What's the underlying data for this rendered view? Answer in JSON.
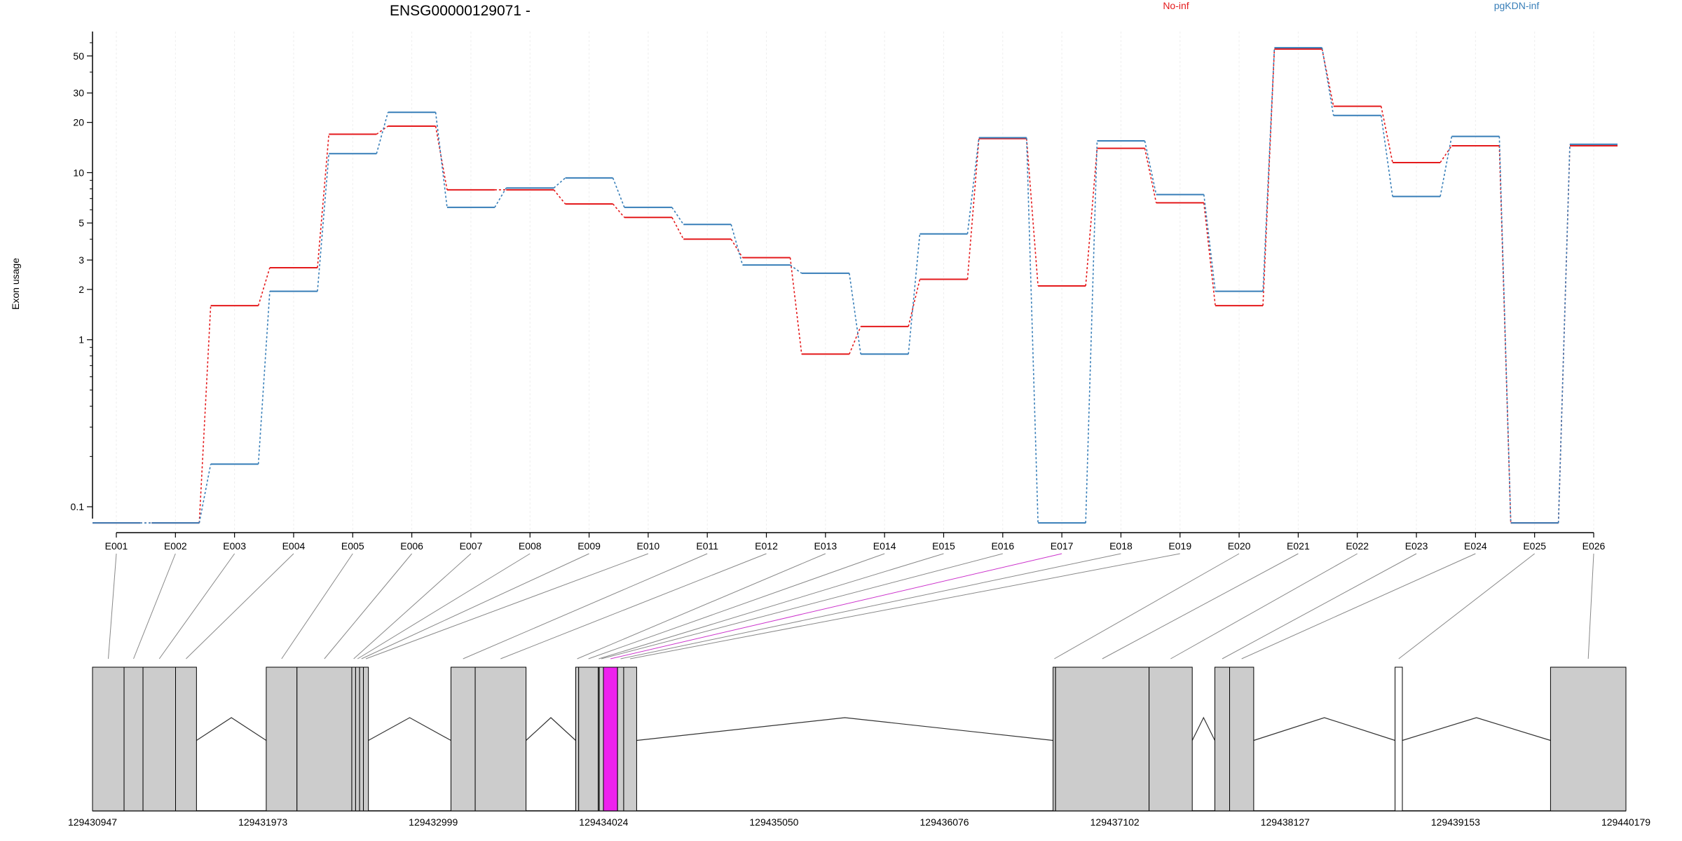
{
  "chart_data": {
    "type": "line",
    "title": "ENSG00000129071 -",
    "ylabel": "Exon usage",
    "xlabel": "",
    "y_scale": "log",
    "ylim": [
      0.07,
      70
    ],
    "y_ticks": [
      {
        "value": 0.1,
        "label": "0.1"
      },
      {
        "value": 1,
        "label": "1"
      },
      {
        "value": 2,
        "label": "2"
      },
      {
        "value": 3,
        "label": "3"
      },
      {
        "value": 5,
        "label": "5"
      },
      {
        "value": 10,
        "label": "10"
      },
      {
        "value": 20,
        "label": "20"
      },
      {
        "value": 30,
        "label": "30"
      },
      {
        "value": 50,
        "label": "50"
      }
    ],
    "categories": [
      "E001",
      "E002",
      "E003",
      "E004",
      "E005",
      "E006",
      "E007",
      "E008",
      "E009",
      "E010",
      "E011",
      "E012",
      "E013",
      "E014",
      "E015",
      "E016",
      "E017",
      "E018",
      "E019",
      "E020",
      "E021",
      "E022",
      "E023",
      "E024",
      "E025",
      "E026"
    ],
    "series": [
      {
        "name": "No-inf",
        "color": "#e41a1c",
        "values": [
          0.08,
          0.08,
          1.6,
          2.7,
          17,
          19,
          7.9,
          7.9,
          6.5,
          5.4,
          4.0,
          3.1,
          0.82,
          1.2,
          2.3,
          16,
          2.1,
          14,
          6.6,
          1.6,
          55,
          25,
          11.5,
          14.5,
          0.08,
          14.5
        ]
      },
      {
        "name": "pgKDN-inf",
        "color": "#377eb8",
        "values": [
          0.08,
          0.08,
          0.18,
          1.95,
          13,
          23,
          6.2,
          8.1,
          9.3,
          6.2,
          4.9,
          2.8,
          2.5,
          0.82,
          4.3,
          16.2,
          0.08,
          15.5,
          7.4,
          1.95,
          56,
          22,
          7.2,
          16.5,
          0.08,
          14.8
        ]
      }
    ],
    "legend": {
      "placement": "top",
      "entries": [
        "No-inf",
        "pgKDN-inf"
      ]
    },
    "grid": true
  },
  "gene_model": {
    "coordinates": [
      "129430947",
      "129431973",
      "129432999",
      "129434024",
      "129435050",
      "129436076",
      "129437102",
      "129438127",
      "129439153",
      "129440179"
    ],
    "coord_range": [
      129430947,
      129440179
    ],
    "highlight_color": "#ee22ee",
    "highlighted_exon": "E017",
    "exons": [
      {
        "id": "E001",
        "start": 129430947,
        "end": 129431137
      },
      {
        "id": "E002",
        "start": 129431137,
        "end": 129431251
      },
      {
        "id": "E003",
        "start": 129431251,
        "end": 129431447
      },
      {
        "id": "E004",
        "start": 129431447,
        "end": 129431573
      },
      {
        "id": "E005",
        "start": 129431993,
        "end": 129432178
      },
      {
        "id": "E006",
        "start": 129432178,
        "end": 129432508
      },
      {
        "id": "E007",
        "start": 129432508,
        "end": 129432531
      },
      {
        "id": "E008",
        "start": 129432531,
        "end": 129432555
      },
      {
        "id": "E009",
        "start": 129432555,
        "end": 129432578
      },
      {
        "id": "E010",
        "start": 129432578,
        "end": 129432608
      },
      {
        "id": "E011",
        "start": 129433105,
        "end": 129433251
      },
      {
        "id": "E012",
        "start": 129433251,
        "end": 129433557
      },
      {
        "id": "E013",
        "start": 129433856,
        "end": 129433874
      },
      {
        "id": "E014",
        "start": 129433874,
        "end": 129433992
      },
      {
        "id": "E015",
        "start": 129433992,
        "end": 129433998
      },
      {
        "id": "E016",
        "start": 129433998,
        "end": 129434023
      },
      {
        "id": "E017",
        "start": 129434023,
        "end": 129434108
      },
      {
        "id": "E018",
        "start": 129434108,
        "end": 129434145
      },
      {
        "id": "E019",
        "start": 129434145,
        "end": 129434223
      },
      {
        "id": "E020",
        "start": 129436730,
        "end": 129436745
      },
      {
        "id": "E021",
        "start": 129436745,
        "end": 129437308
      },
      {
        "id": "E022",
        "start": 129437308,
        "end": 129437568
      },
      {
        "id": "E023",
        "start": 129437704,
        "end": 129437793
      },
      {
        "id": "E024",
        "start": 129437793,
        "end": 129437938
      },
      {
        "id": "E025",
        "start": 129438789,
        "end": 129438833
      },
      {
        "id": "E026",
        "start": 129439725,
        "end": 129440179
      }
    ]
  }
}
